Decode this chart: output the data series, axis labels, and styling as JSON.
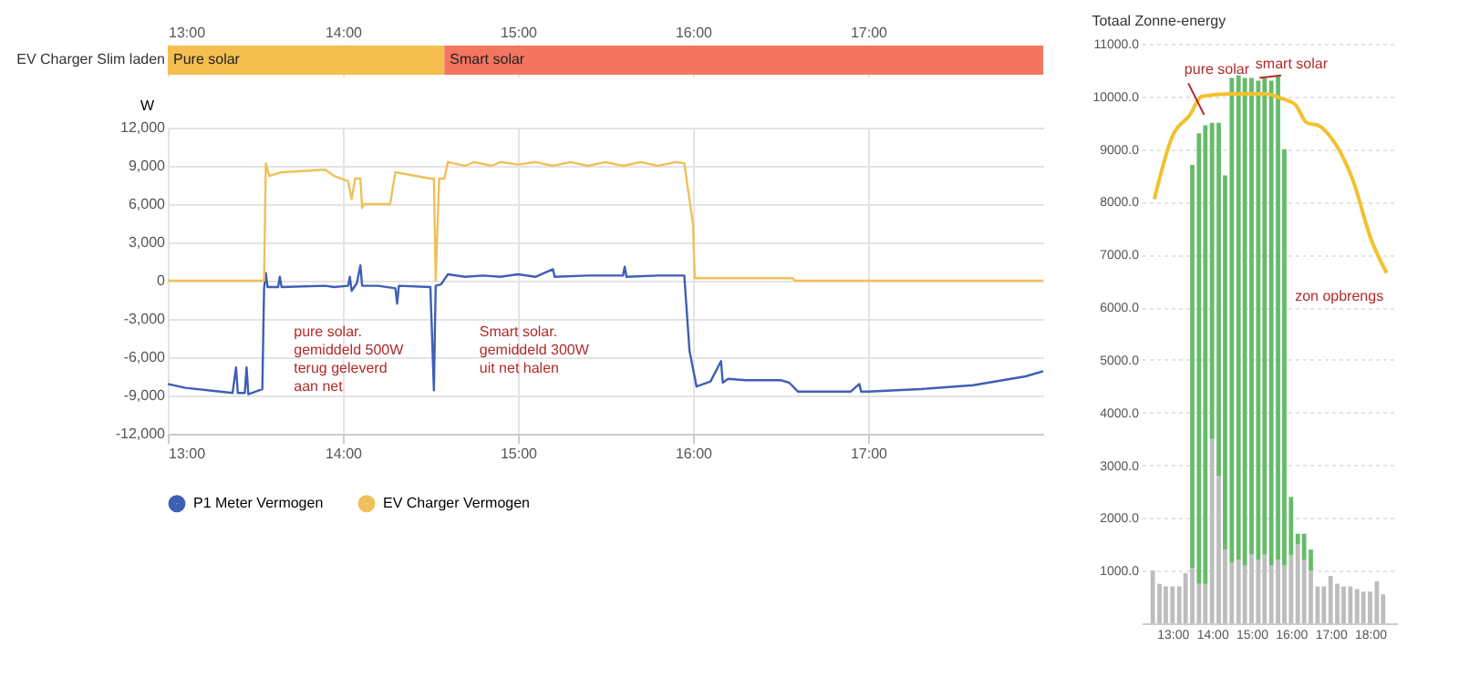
{
  "chart_data": [
    {
      "type": "bar",
      "orientation": "horizontal",
      "categories": [
        "EV Charger Slim laden"
      ],
      "series": [
        {
          "name": "Pure solar",
          "color": "#f4bf4f",
          "base": [
            13
          ],
          "values": [
            1.58
          ]
        },
        {
          "name": "Smart solar",
          "color": "#f47560",
          "base": [
            14.58
          ],
          "values": [
            3.42
          ]
        }
      ],
      "xlim": [
        13,
        18
      ],
      "xticks": [
        {
          "value": 13,
          "label": "13:00"
        },
        {
          "value": 14,
          "label": "14:00"
        },
        {
          "value": 15,
          "label": "15:00"
        },
        {
          "value": 16,
          "label": "16:00"
        },
        {
          "value": 17,
          "label": "17:00"
        }
      ],
      "grid": "x"
    },
    {
      "type": "line",
      "ylabel": "W",
      "xlim": [
        13,
        18
      ],
      "ylim": [
        -12000,
        12000
      ],
      "xticks": [
        {
          "value": 13,
          "label": "13:00"
        },
        {
          "value": 14,
          "label": "14:00"
        },
        {
          "value": 15,
          "label": "15:00"
        },
        {
          "value": 16,
          "label": "16:00"
        },
        {
          "value": 17,
          "label": "17:00"
        }
      ],
      "yticks": [
        {
          "value": -12000,
          "label": "-12,000"
        },
        {
          "value": -9000,
          "label": "-9,000"
        },
        {
          "value": -6000,
          "label": "-6,000"
        },
        {
          "value": -3000,
          "label": "-3,000"
        },
        0,
        {
          "value": 3000,
          "label": "3,000"
        },
        {
          "value": 6000,
          "label": "6,000"
        },
        {
          "value": 9000,
          "label": "9,000"
        },
        {
          "value": 12000,
          "label": "12,000"
        }
      ],
      "grid": true,
      "legend": "bottom",
      "line_style": "solid",
      "series": [
        {
          "name": "P1 Meter Vermogen",
          "color": "#3f5fb5",
          "x": [
            13.0,
            13.1,
            13.3,
            13.37,
            13.39,
            13.4,
            13.44,
            13.45,
            13.46,
            13.5,
            13.54,
            13.55,
            13.56,
            13.57,
            13.63,
            13.64,
            13.65,
            13.9,
            13.95,
            14.03,
            14.04,
            14.05,
            14.08,
            14.1,
            14.11,
            14.2,
            14.3,
            14.31,
            14.32,
            14.5,
            14.52,
            14.53,
            14.56,
            14.58,
            14.6,
            14.7,
            14.8,
            14.9,
            15.0,
            15.1,
            15.2,
            15.21,
            15.4,
            15.6,
            15.61,
            15.62,
            15.8,
            15.95,
            15.98,
            16.02,
            16.1,
            16.16,
            16.17,
            16.2,
            16.3,
            16.5,
            16.55,
            16.6,
            16.9,
            16.95,
            16.96,
            17.0,
            17.3,
            17.6,
            17.9,
            18.0
          ],
          "values": [
            -8100,
            -8400,
            -8700,
            -8800,
            -6800,
            -8800,
            -8800,
            -6800,
            -8900,
            -8700,
            -8500,
            -600,
            600,
            -500,
            -500,
            300,
            -500,
            -400,
            -500,
            -400,
            300,
            -800,
            -200,
            1200,
            -400,
            -400,
            -600,
            -1800,
            -400,
            -500,
            -8600,
            -400,
            -300,
            100,
            500,
            300,
            400,
            300,
            500,
            300,
            900,
            300,
            400,
            400,
            1100,
            300,
            400,
            400,
            -5500,
            -8300,
            -7900,
            -6300,
            -8000,
            -7700,
            -7800,
            -7800,
            -8000,
            -8700,
            -8700,
            -8100,
            -8700,
            -8700,
            -8500,
            -8200,
            -7500,
            -7100
          ]
        },
        {
          "name": "EV Charger Vermogen",
          "color": "#f0c05a",
          "x": [
            13.0,
            13.55,
            13.56,
            13.58,
            13.65,
            13.9,
            13.95,
            14.03,
            14.05,
            14.07,
            14.1,
            14.11,
            14.12,
            14.27,
            14.3,
            14.5,
            14.52,
            14.53,
            14.55,
            14.58,
            14.6,
            14.7,
            14.75,
            14.85,
            14.9,
            15.0,
            15.1,
            15.2,
            15.3,
            15.4,
            15.5,
            15.6,
            15.7,
            15.8,
            15.9,
            15.95,
            16.0,
            16.01,
            16.57,
            16.58,
            18.0
          ],
          "values": [
            0,
            0,
            9200,
            8200,
            8500,
            8700,
            8200,
            7800,
            6400,
            8000,
            8000,
            5700,
            6000,
            6000,
            8500,
            8000,
            8000,
            0,
            8000,
            8000,
            9300,
            9000,
            9300,
            9000,
            9300,
            9100,
            9300,
            9000,
            9300,
            9000,
            9300,
            9000,
            9300,
            9000,
            9300,
            9200,
            4400,
            200,
            200,
            0,
            0
          ]
        }
      ],
      "annotations": [
        "pure solar.\ngemiddeld 500W\nterug geleverd\naan net",
        "Smart solar.\ngemiddeld 300W\nuit net halen"
      ]
    },
    {
      "type": "bar",
      "title": "Totaal Zonne-energy",
      "xlim": [
        12.45,
        18.45
      ],
      "ylim": [
        0,
        11000
      ],
      "stacked": true,
      "xticks": [
        {
          "value": 13,
          "label": "13:00"
        },
        {
          "value": 14,
          "label": "14:00"
        },
        {
          "value": 15,
          "label": "15:00"
        },
        {
          "value": 16,
          "label": "16:00"
        },
        {
          "value": 17,
          "label": "17:00"
        },
        {
          "value": 18,
          "label": "18:00"
        }
      ],
      "yticks": [
        {
          "value": 1000,
          "label": "1000.0"
        },
        {
          "value": 2000,
          "label": "2000.0"
        },
        {
          "value": 3000,
          "label": "3000.0"
        },
        {
          "value": 4000,
          "label": "4000.0"
        },
        {
          "value": 5000,
          "label": "5000.0"
        },
        {
          "value": 6000,
          "label": "6000.0"
        },
        {
          "value": 7000,
          "label": "7000.0"
        },
        {
          "value": 8000,
          "label": "8000.0"
        },
        {
          "value": 9000,
          "label": "9000.0"
        },
        {
          "value": 10000,
          "label": "10000.0"
        },
        {
          "value": 11000,
          "label": "11000.0"
        }
      ],
      "grid": "y",
      "x": [
        12.5,
        12.67,
        12.83,
        13.0,
        13.17,
        13.33,
        13.5,
        13.67,
        13.83,
        14.0,
        14.17,
        14.33,
        14.5,
        14.67,
        14.83,
        15.0,
        15.17,
        15.33,
        15.5,
        15.67,
        15.83,
        16.0,
        16.17,
        16.33,
        16.5,
        16.67,
        16.83,
        17.0,
        17.17,
        17.33,
        17.5,
        17.67,
        17.83,
        18.0,
        18.17,
        18.33
      ],
      "series": [
        {
          "color": "#bdbdbd",
          "values": [
            1000,
            750,
            700,
            700,
            700,
            950,
            1050,
            750,
            750,
            3500,
            2800,
            1400,
            1150,
            1200,
            1100,
            1300,
            1200,
            1300,
            1100,
            1200,
            1100,
            1300,
            1500,
            1200,
            1000,
            700,
            700,
            900,
            750,
            700,
            700,
            650,
            600,
            600,
            800,
            550
          ]
        },
        {
          "color": "#66bb6a",
          "values": [
            null,
            null,
            null,
            null,
            null,
            null,
            7650,
            8550,
            8700,
            6000,
            6700,
            7100,
            9200,
            9200,
            9250,
            9050,
            9100,
            9050,
            9200,
            9200,
            7900,
            1100,
            200,
            500,
            400,
            null,
            null,
            null,
            null,
            null,
            null,
            null,
            null,
            null,
            null,
            null
          ]
        },
        {
          "type": "line",
          "color": "#f2c12e",
          "x": [
            12.54,
            13.0,
            13.44,
            13.74,
            14.47,
            15.36,
            15.8,
            16.1,
            16.4,
            16.69,
            16.98,
            17.57,
            18.02,
            18.42
          ],
          "values": [
            8050,
            9250,
            9650,
            10000,
            10050,
            10050,
            9950,
            9850,
            9500,
            9450,
            9250,
            8400,
            7300,
            6650
          ]
        }
      ],
      "annotations": [
        "pure solar",
        "smart solar",
        "zon opbrengs"
      ]
    }
  ]
}
